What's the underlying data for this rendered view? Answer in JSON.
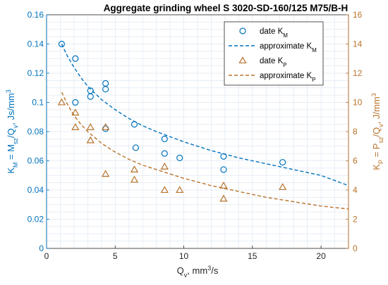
{
  "chart_data": {
    "type": "scatter",
    "title": "Aggregate grinding wheel  S 3020-SD-160/125 M75/B-H",
    "xlabel": {
      "main": "Q",
      "sub": "v",
      "rest": ", mm",
      "sup": "3",
      "tail": "/s"
    },
    "ylabel_left": "K_M = M_sz/Q_v, Js/mm^3",
    "ylabel_right": "K_P = P_sz/Q_v, J/mm^3",
    "xlim": [
      0,
      22
    ],
    "ylim_left": [
      0,
      0.16
    ],
    "ylim_right": [
      0,
      16
    ],
    "xticks": [
      0,
      5,
      10,
      15,
      20
    ],
    "yticks_left": [
      0,
      0.02,
      0.04,
      0.06,
      0.08,
      0.1,
      0.12,
      0.14,
      0.16
    ],
    "yticks_left_labels": [
      "0",
      "0.02",
      "0.04",
      "0.06",
      "0.08",
      "0.1",
      "0.12",
      "0.14",
      "0.16"
    ],
    "yticks_right": [
      0,
      2,
      4,
      6,
      8,
      10,
      12,
      14,
      16
    ],
    "grid": true,
    "legend_position": "top-right",
    "colors": {
      "km": "#0072BD",
      "kp": "#B8732B",
      "grid": "#dfe8f2",
      "axis": "#262626"
    },
    "series": [
      {
        "name": "date K_M",
        "legend_main": "date K",
        "legend_sub": "M",
        "marker": "circle",
        "axis": "left",
        "points": [
          {
            "x": 1.1,
            "y": 0.14
          },
          {
            "x": 2.1,
            "y": 0.13
          },
          {
            "x": 2.1,
            "y": 0.1
          },
          {
            "x": 3.2,
            "y": 0.108
          },
          {
            "x": 3.2,
            "y": 0.104
          },
          {
            "x": 4.3,
            "y": 0.113
          },
          {
            "x": 4.3,
            "y": 0.109
          },
          {
            "x": 4.3,
            "y": 0.082
          },
          {
            "x": 6.4,
            "y": 0.085
          },
          {
            "x": 6.5,
            "y": 0.069
          },
          {
            "x": 8.6,
            "y": 0.075
          },
          {
            "x": 8.6,
            "y": 0.065
          },
          {
            "x": 9.7,
            "y": 0.062
          },
          {
            "x": 12.9,
            "y": 0.063
          },
          {
            "x": 12.9,
            "y": 0.054
          },
          {
            "x": 17.2,
            "y": 0.059
          }
        ]
      },
      {
        "name": "approximate K_M",
        "legend_main": "approximate K",
        "legend_sub": "M",
        "style": "dashed",
        "axis": "left",
        "x": [
          1.1,
          1.5,
          2,
          2.5,
          3,
          4,
          5,
          6,
          7,
          8,
          10,
          12,
          14,
          16,
          18,
          20,
          22
        ],
        "y": [
          0.14,
          0.132,
          0.124,
          0.117,
          0.111,
          0.102,
          0.095,
          0.089,
          0.084,
          0.08,
          0.073,
          0.067,
          0.062,
          0.058,
          0.054,
          0.05,
          0.043
        ]
      },
      {
        "name": "date K_P",
        "legend_main": "date K",
        "legend_sub": "P",
        "marker": "triangle",
        "axis": "right",
        "points": [
          {
            "x": 1.1,
            "y": 10.0
          },
          {
            "x": 2.1,
            "y": 9.3
          },
          {
            "x": 2.1,
            "y": 8.3
          },
          {
            "x": 3.2,
            "y": 8.3
          },
          {
            "x": 3.2,
            "y": 7.4
          },
          {
            "x": 4.3,
            "y": 8.3
          },
          {
            "x": 4.3,
            "y": 5.1
          },
          {
            "x": 6.4,
            "y": 5.4
          },
          {
            "x": 6.4,
            "y": 4.7
          },
          {
            "x": 8.6,
            "y": 5.6
          },
          {
            "x": 8.6,
            "y": 4.0
          },
          {
            "x": 9.7,
            "y": 4.0
          },
          {
            "x": 12.9,
            "y": 4.3
          },
          {
            "x": 12.9,
            "y": 3.4
          },
          {
            "x": 17.2,
            "y": 4.2
          }
        ]
      },
      {
        "name": "approximate K_P",
        "legend_main": "approximate K",
        "legend_sub": "P",
        "style": "dashed",
        "axis": "right",
        "x": [
          1.1,
          1.5,
          2,
          2.5,
          3,
          4,
          5,
          6,
          7,
          8,
          10,
          12,
          14,
          16,
          18,
          20,
          22
        ],
        "y": [
          10.7,
          9.9,
          9.1,
          8.5,
          8.0,
          7.2,
          6.6,
          6.1,
          5.7,
          5.4,
          4.8,
          4.3,
          3.9,
          3.5,
          3.2,
          2.9,
          2.7
        ]
      }
    ]
  }
}
